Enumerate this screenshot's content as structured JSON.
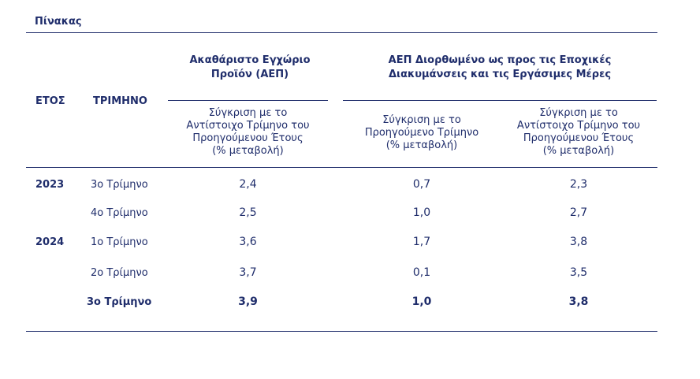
{
  "title": "Πίνακας",
  "headers": {
    "year": "ΕΤΟΣ",
    "quarter": "ΤΡΙΜΗΝΟ",
    "group1_line1": "Ακαθάριστο Εγχώριο",
    "group1_line2": "Προϊόν (ΑΕΠ)",
    "group2_line1": "ΑΕΠ Διορθωμένο ως προς τις Εποχικές",
    "group2_line2": "Διακυμάνσεις και τις Εργάσιμες Μέρες",
    "sub1": [
      "Σύγκριση με το",
      "Αντίστοιχο Τρίμηνο του",
      "Προηγούμενου Έτους",
      "(% μεταβολή)"
    ],
    "sub2": [
      "Σύγκριση με το",
      "Προηγούμενο Τρίμηνο",
      "(% μεταβολή)"
    ],
    "sub3": [
      "Σύγκριση με το",
      "Αντίστοιχο Τρίμηνο του",
      "Προηγούμενου Έτους",
      "(% μεταβολή)"
    ]
  },
  "rows": [
    {
      "year": "2023",
      "quarter": "3ο Τρίμηνο",
      "c1": "2,4",
      "c2": "0,7",
      "c3": "2,3"
    },
    {
      "year": "",
      "quarter": "4ο Τρίμηνο",
      "c1": "2,5",
      "c2": "1,0",
      "c3": "2,7"
    },
    {
      "year": "2024",
      "quarter": "1ο Τρίμηνο",
      "c1": "3,6",
      "c2": "1,7",
      "c3": "3,8"
    },
    {
      "year": "",
      "quarter": "2ο Τρίμηνο",
      "c1": "3,7",
      "c2": "0,1",
      "c3": "3,5"
    },
    {
      "year": "",
      "quarter": "3ο Τρίμηνο",
      "c1": "3,9",
      "c2": "1,0",
      "c3": "3,8"
    }
  ]
}
